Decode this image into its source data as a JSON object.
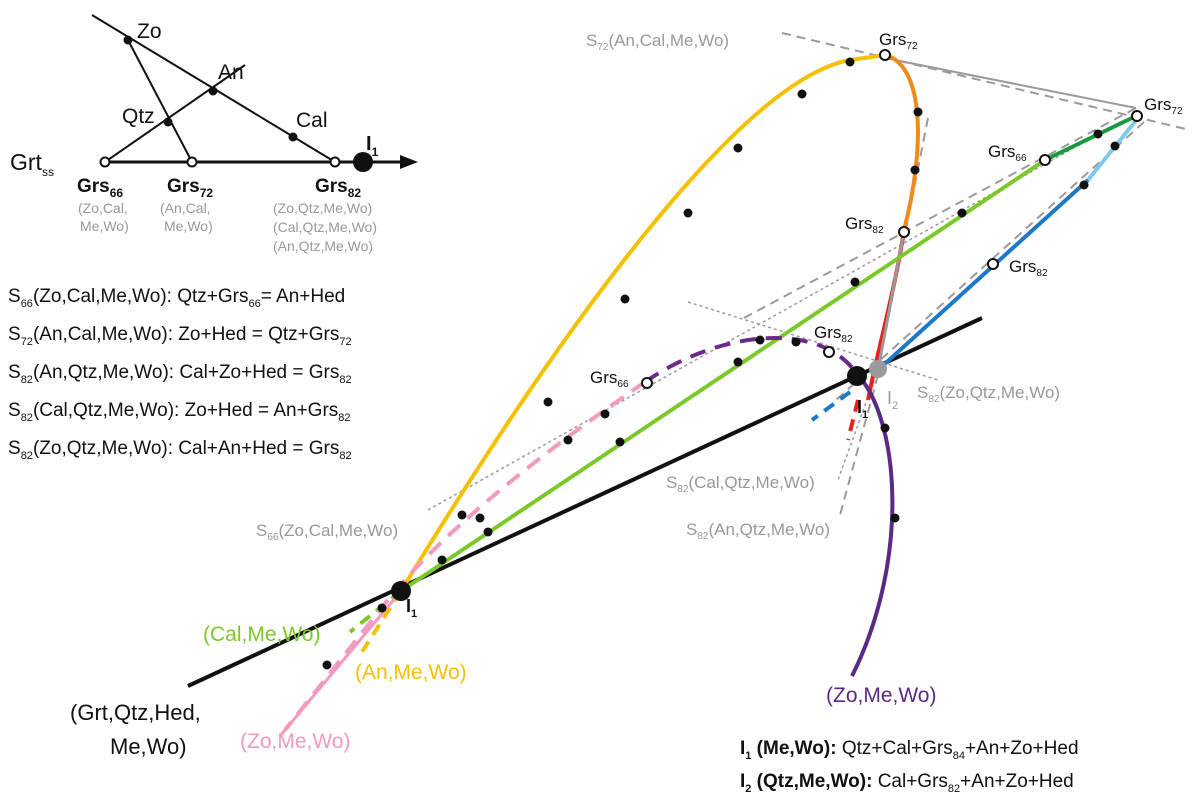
{
  "inset": {
    "phases": {
      "zo": "Zo",
      "an": "An",
      "qtz": "Qtz",
      "cal": "Cal"
    },
    "axis_label": "Grt",
    "axis_sub": "ss",
    "i1_label": "I",
    "i1_sub": "1",
    "grs66": {
      "label": "Grs",
      "sub": "66",
      "assemblages": [
        "(Zo,Cal,",
        "Me,Wo)"
      ]
    },
    "grs72": {
      "label": "Grs",
      "sub": "72",
      "assemblages": [
        "(An,Cal,",
        "Me,Wo)"
      ]
    },
    "grs82": {
      "label": "Grs",
      "sub": "82",
      "assemblages": [
        "(Zo,Qtz,Me,Wo)",
        "(Cal,Qtz,Me,Wo)",
        "(An,Qtz,Me,Wo)"
      ]
    }
  },
  "reactions": [
    {
      "s": "S",
      "ssub": "66",
      "assemblage": "(Zo,Cal,Me,Wo): ",
      "r1": "Qtz+Grs",
      "rsub": "66",
      "r2": "= An+Hed"
    },
    {
      "s": "S",
      "ssub": "72",
      "assemblage": "(An,Cal,Me,Wo): ",
      "r1": "Zo+Hed = Qtz+Grs",
      "rsub": "72",
      "r2": ""
    },
    {
      "s": "S",
      "ssub": "82",
      "assemblage": "(An,Qtz,Me,Wo): ",
      "r1": "Cal+Zo+Hed = Grs",
      "rsub": "82",
      "r2": ""
    },
    {
      "s": "S",
      "ssub": "82",
      "assemblage": "(Cal,Qtz,Me,Wo): ",
      "r1": "Zo+Hed = An+Grs",
      "rsub": "82",
      "r2": ""
    },
    {
      "s": "S",
      "ssub": "82",
      "assemblage": "(Zo,Qtz,Me,Wo): ",
      "r1": "Cal+An+Hed = Grs",
      "rsub": "82",
      "r2": ""
    }
  ],
  "main": {
    "s72_label": {
      "s": "S",
      "sub": "72",
      "rest": "(An,Cal,Me,Wo)"
    },
    "s66_label": {
      "s": "S",
      "sub": "66",
      "rest": "(Zo,Cal,Me,Wo)"
    },
    "s82_zo_label": {
      "s": "S",
      "sub": "82",
      "rest": "(Zo,Qtz,Me,Wo)"
    },
    "s82_cal_label": {
      "s": "S",
      "sub": "82",
      "rest": "(Cal,Qtz,Me,Wo)"
    },
    "s82_an_label": {
      "s": "S",
      "sub": "82",
      "rest": "(An,Qtz,Me,Wo)"
    },
    "grs72_top": {
      "label": "Grs",
      "sub": "72"
    },
    "grs72_right": {
      "label": "Grs",
      "sub": "72"
    },
    "grs66_right": {
      "label": "Grs",
      "sub": "66"
    },
    "grs82_orange": {
      "label": "Grs",
      "sub": "82"
    },
    "grs82_blue": {
      "label": "Grs",
      "sub": "82"
    },
    "grs82_purple": {
      "label": "Grs",
      "sub": "82"
    },
    "grs66_purple": {
      "label": "Grs",
      "sub": "66"
    },
    "i1_main": {
      "label": "I",
      "sub": "1"
    },
    "i1_center": {
      "label": "I",
      "sub": "1"
    },
    "i2_center": {
      "label": "I",
      "sub": "2"
    },
    "cal_me_wo": "(Cal,Me,Wo)",
    "an_me_wo": "(An,Me,Wo)",
    "grt_line1": "(Grt,Qtz,Hed,",
    "grt_line2": "Me,Wo)",
    "zo_me_wo_pink": "(Zo,Me,Wo)",
    "zo_me_wo_purple": "(Zo,Me,Wo)"
  },
  "legend": {
    "i1": {
      "label": "I",
      "sub": "1",
      "assemblage": " (Me,Wo):",
      "reaction": " Qtz+Cal+Grs",
      "rsub": "84",
      "rest": "+An+Zo+Hed"
    },
    "i2": {
      "label": "I",
      "sub": "2",
      "assemblage": " (Qtz,Me,Wo):",
      "reaction": " Cal+Grs",
      "rsub": "82",
      "rest": "+An+Zo+Hed"
    }
  },
  "colors": {
    "yellow": "#f5c000",
    "orange": "#f08a1c",
    "green": "#7ac82a",
    "dark_green": "#1a9a40",
    "blue": "#1e78c8",
    "light_blue": "#7ccaf0",
    "red": "#e8211c",
    "purple": "#6a2a8a",
    "dark_purple": "#5a2a86",
    "pink": "#f29ac0",
    "gray_line": "#9a9a9a",
    "black": "#111111"
  }
}
